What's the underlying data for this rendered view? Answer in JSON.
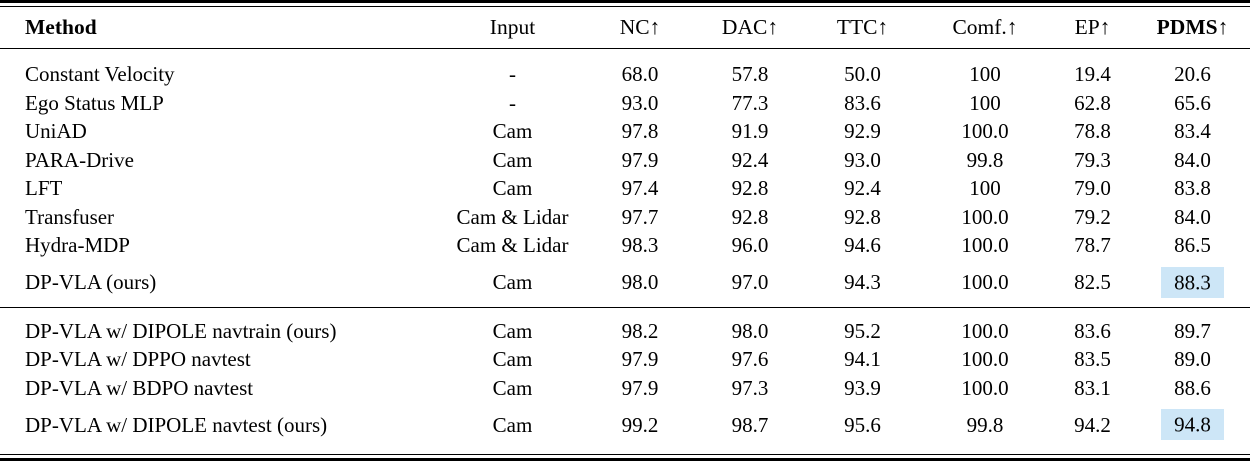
{
  "table": {
    "columns": [
      {
        "label": "Method",
        "bold": true
      },
      {
        "label": "Input",
        "bold": false
      },
      {
        "label": "NC↑",
        "bold": false
      },
      {
        "label": "DAC↑",
        "bold": false
      },
      {
        "label": "TTC↑",
        "bold": false
      },
      {
        "label": "Comf.↑",
        "bold": false
      },
      {
        "label": "EP↑",
        "bold": false
      },
      {
        "label": "PDMS↑",
        "bold": true
      }
    ],
    "highlight_color": "#cde6f7",
    "sections": [
      {
        "rows": [
          {
            "cells": [
              "Constant Velocity",
              "-",
              "68.0",
              "57.8",
              "50.0",
              "100",
              "19.4",
              "20.6"
            ],
            "gap_before": false,
            "highlight_pdms": false
          },
          {
            "cells": [
              "Ego Status MLP",
              "-",
              "93.0",
              "77.3",
              "83.6",
              "100",
              "62.8",
              "65.6"
            ],
            "gap_before": false,
            "highlight_pdms": false
          },
          {
            "cells": [
              "UniAD",
              "Cam",
              "97.8",
              "91.9",
              "92.9",
              "100.0",
              "78.8",
              "83.4"
            ],
            "gap_before": false,
            "highlight_pdms": false
          },
          {
            "cells": [
              "PARA-Drive",
              "Cam",
              "97.9",
              "92.4",
              "93.0",
              "99.8",
              "79.3",
              "84.0"
            ],
            "gap_before": false,
            "highlight_pdms": false
          },
          {
            "cells": [
              "LFT",
              "Cam",
              "97.4",
              "92.8",
              "92.4",
              "100",
              "79.0",
              "83.8"
            ],
            "gap_before": false,
            "highlight_pdms": false
          },
          {
            "cells": [
              "Transfuser",
              "Cam & Lidar",
              "97.7",
              "92.8",
              "92.8",
              "100.0",
              "79.2",
              "84.0"
            ],
            "gap_before": false,
            "highlight_pdms": false
          },
          {
            "cells": [
              "Hydra-MDP",
              "Cam & Lidar",
              "98.3",
              "96.0",
              "94.6",
              "100.0",
              "78.7",
              "86.5"
            ],
            "gap_before": false,
            "highlight_pdms": false
          },
          {
            "cells": [
              "DP-VLA (ours)",
              "Cam",
              "98.0",
              "97.0",
              "94.3",
              "100.0",
              "82.5",
              "88.3"
            ],
            "gap_before": true,
            "highlight_pdms": true
          }
        ]
      },
      {
        "rows": [
          {
            "cells": [
              "DP-VLA w/ DIPOLE navtrain (ours)",
              "Cam",
              "98.2",
              "98.0",
              "95.2",
              "100.0",
              "83.6",
              "89.7"
            ],
            "gap_before": false,
            "highlight_pdms": false
          },
          {
            "cells": [
              "DP-VLA w/ DPPO navtest",
              "Cam",
              "97.9",
              "97.6",
              "94.1",
              "100.0",
              "83.5",
              "89.0"
            ],
            "gap_before": false,
            "highlight_pdms": false
          },
          {
            "cells": [
              "DP-VLA w/ BDPO navtest",
              "Cam",
              "97.9",
              "97.3",
              "93.9",
              "100.0",
              "83.1",
              "88.6"
            ],
            "gap_before": false,
            "highlight_pdms": false
          },
          {
            "cells": [
              "DP-VLA w/ DIPOLE navtest (ours)",
              "Cam",
              "99.2",
              "98.7",
              "95.6",
              "99.8",
              "94.2",
              "94.8"
            ],
            "gap_before": true,
            "highlight_pdms": true
          }
        ]
      }
    ]
  }
}
